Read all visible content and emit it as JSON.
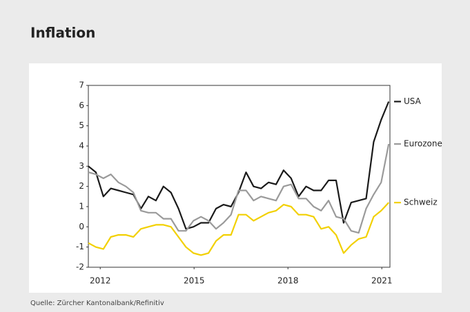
{
  "chart_data": {
    "type": "line",
    "title": "Inflation",
    "source": "Quelle: Zürcher Kantonalbank/Refinitiv",
    "x": [
      2011.62,
      2011.86,
      2012.1,
      2012.34,
      2012.58,
      2012.82,
      2013.06,
      2013.3,
      2013.54,
      2013.78,
      2014.02,
      2014.26,
      2014.5,
      2014.74,
      2014.98,
      2015.22,
      2015.46,
      2015.7,
      2015.94,
      2016.18,
      2016.42,
      2016.66,
      2016.9,
      2017.14,
      2017.38,
      2017.62,
      2017.86,
      2018.1,
      2018.34,
      2018.58,
      2018.82,
      2019.06,
      2019.3,
      2019.54,
      2019.78,
      2020.02,
      2020.26,
      2020.5,
      2020.74,
      2020.98,
      2021.22
    ],
    "series": [
      {
        "name": "USA",
        "color": "#1a1a1a",
        "values": [
          3.0,
          2.7,
          1.5,
          1.9,
          1.8,
          1.7,
          1.6,
          0.9,
          1.5,
          1.3,
          2.0,
          1.7,
          0.9,
          -0.1,
          0.0,
          0.2,
          0.2,
          0.9,
          1.1,
          1.0,
          1.7,
          2.7,
          2.0,
          1.9,
          2.2,
          2.1,
          2.8,
          2.4,
          1.5,
          2.0,
          1.8,
          1.8,
          2.3,
          2.3,
          0.2,
          1.2,
          1.3,
          1.4,
          4.2,
          5.3,
          6.2
        ]
      },
      {
        "name": "Eurozone",
        "color": "#9a9a9a",
        "values": [
          2.7,
          2.6,
          2.4,
          2.6,
          2.2,
          2.0,
          1.7,
          0.8,
          0.7,
          0.7,
          0.4,
          0.4,
          -0.2,
          -0.2,
          0.3,
          0.5,
          0.3,
          -0.1,
          0.2,
          0.6,
          1.8,
          1.8,
          1.3,
          1.5,
          1.4,
          1.3,
          2.0,
          2.1,
          1.4,
          1.4,
          1.0,
          0.8,
          1.3,
          0.5,
          0.4,
          -0.2,
          -0.3,
          0.9,
          1.6,
          2.2,
          4.1
        ]
      },
      {
        "name": "Schweiz",
        "color": "#f2d000",
        "values": [
          -0.8,
          -1.0,
          -1.1,
          -0.5,
          -0.4,
          -0.4,
          -0.5,
          -0.1,
          0.0,
          0.1,
          0.1,
          0.0,
          -0.5,
          -1.0,
          -1.3,
          -1.4,
          -1.3,
          -0.7,
          -0.4,
          -0.4,
          0.6,
          0.6,
          0.3,
          0.5,
          0.7,
          0.8,
          1.1,
          1.0,
          0.6,
          0.6,
          0.5,
          -0.1,
          0.0,
          -0.4,
          -1.3,
          -0.9,
          -0.6,
          -0.5,
          0.5,
          0.8,
          1.2
        ]
      }
    ],
    "xlim": [
      2011.62,
      2021.26
    ],
    "xticks": [
      2012,
      2015,
      2018,
      2021
    ],
    "ylim": [
      -2,
      7
    ],
    "yticks": [
      -2,
      -1,
      0,
      1,
      2,
      3,
      4,
      5,
      6,
      7
    ]
  }
}
